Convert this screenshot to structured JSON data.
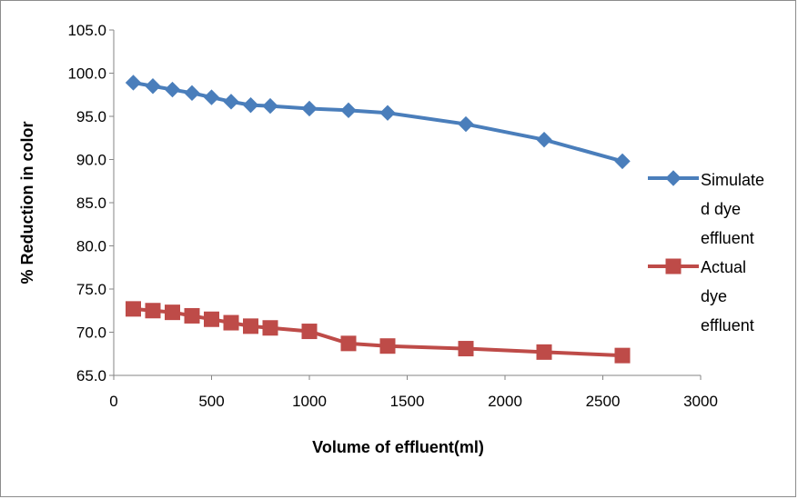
{
  "chart_data": {
    "type": "line",
    "title": "",
    "xlabel": "Volume of effluent(ml)",
    "ylabel": "% Reduction in color",
    "xlim": [
      0,
      3000
    ],
    "ylim": [
      65,
      105
    ],
    "xticks": [
      0,
      500,
      1000,
      1500,
      2000,
      2500,
      3000
    ],
    "yticks": [
      "65.0",
      "70.0",
      "75.0",
      "80.0",
      "85.0",
      "90.0",
      "95.0",
      "100.0",
      "105.0"
    ],
    "grid": false,
    "legend_position": "right",
    "series": [
      {
        "name": "Simulated dye effluent",
        "legend_lines": [
          "Simulate",
          "d dye",
          "effluent"
        ],
        "color": "#4a7ebb",
        "marker": "diamond",
        "x": [
          100,
          200,
          300,
          400,
          500,
          600,
          700,
          800,
          1000,
          1200,
          1400,
          1800,
          2200,
          2600
        ],
        "y": [
          98.9,
          98.5,
          98.1,
          97.7,
          97.2,
          96.7,
          96.3,
          96.2,
          95.9,
          95.7,
          95.4,
          94.1,
          92.3,
          89.8
        ]
      },
      {
        "name": "Actual dye effluent",
        "legend_lines": [
          "Actual",
          "dye",
          "effluent"
        ],
        "color": "#be4b48",
        "marker": "square",
        "x": [
          100,
          200,
          300,
          400,
          500,
          600,
          700,
          800,
          1000,
          1200,
          1400,
          1800,
          2200,
          2600
        ],
        "y": [
          72.7,
          72.5,
          72.3,
          71.9,
          71.5,
          71.1,
          70.7,
          70.5,
          70.1,
          68.7,
          68.4,
          68.1,
          67.7,
          67.3
        ]
      }
    ]
  }
}
